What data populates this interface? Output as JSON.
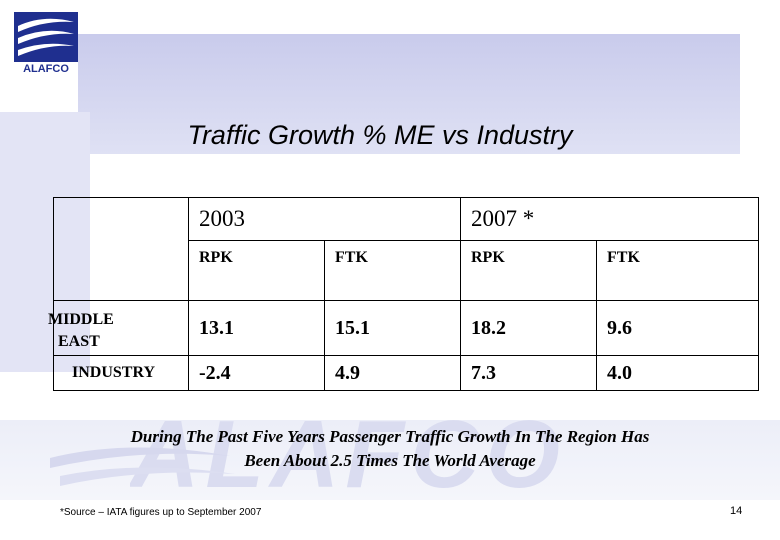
{
  "logo": {
    "text": "ALAFCO",
    "color": "#1f2f8f"
  },
  "slide": {
    "title": "Traffic Growth % ME vs Industry",
    "table": {
      "years": [
        "2003",
        "2007 *"
      ],
      "metrics": [
        "RPK",
        "FTK",
        "RPK",
        "FTK"
      ],
      "rows": [
        {
          "label_line1": "MIDDLE",
          "label_line2": "EAST",
          "values": [
            "13.1",
            "15.1",
            "18.2",
            "9.6"
          ]
        },
        {
          "label_line1": "INDUSTRY",
          "label_line2": "",
          "values": [
            "-2.4",
            "4.9",
            "7.3",
            "4.0"
          ]
        }
      ]
    },
    "caption_line1": "During The Past Five Years Passenger Traffic Growth In The Region Has",
    "caption_line2": "Been About 2.5 Times The World Average",
    "footnote": "*Source – IATA figures up to September 2007",
    "page_number": "14"
  },
  "watermark": {
    "text": "ALAFCO"
  }
}
